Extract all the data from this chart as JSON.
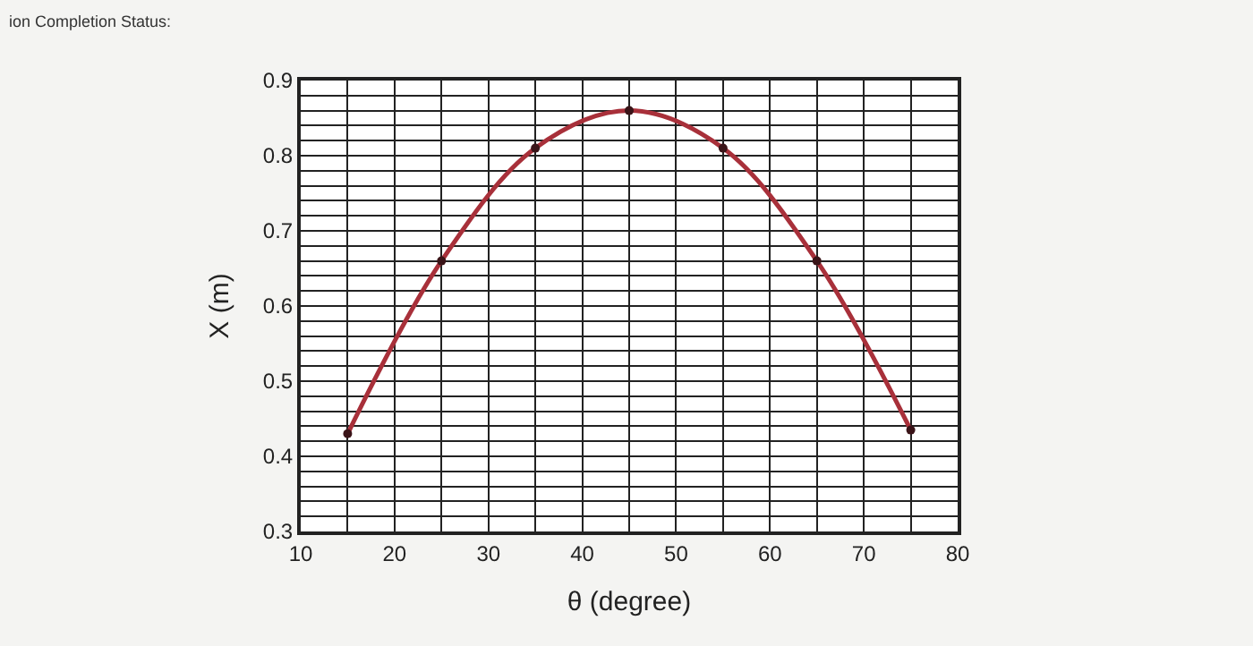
{
  "chart_data": {
    "type": "line",
    "xlabel": "θ (degree)",
    "ylabel": "X (m)",
    "annotations": [
      "ion Completion Status:"
    ],
    "x": [
      15,
      25,
      35,
      45,
      55,
      65,
      75
    ],
    "series": [
      {
        "color": "#a8303a",
        "values": [
          0.43,
          0.66,
          0.81,
          0.86,
          0.81,
          0.66,
          0.435
        ]
      }
    ],
    "xlim": [
      10,
      80
    ],
    "xticks": [
      10,
      {
        "value": 15,
        "label": null
      },
      20,
      {
        "value": 25,
        "label": null
      },
      30,
      {
        "value": 35,
        "label": null
      },
      40,
      {
        "value": 45,
        "label": null
      },
      50,
      {
        "value": 55,
        "label": null
      },
      60,
      {
        "value": 65,
        "label": null
      },
      70,
      {
        "value": 75,
        "label": null
      },
      80
    ],
    "ylim": [
      0.3,
      0.9
    ],
    "yticks": [
      0.3,
      {
        "value": 0.32,
        "label": null
      },
      {
        "value": 0.34,
        "label": null
      },
      {
        "value": 0.36,
        "label": null
      },
      {
        "value": 0.38,
        "label": null
      },
      0.4,
      {
        "value": 0.42,
        "label": null
      },
      {
        "value": 0.44,
        "label": null
      },
      {
        "value": 0.46,
        "label": null
      },
      {
        "value": 0.48,
        "label": null
      },
      0.5,
      {
        "value": 0.52,
        "label": null
      },
      {
        "value": 0.54,
        "label": null
      },
      {
        "value": 0.56,
        "label": null
      },
      {
        "value": 0.58,
        "label": null
      },
      0.6,
      {
        "value": 0.62,
        "label": null
      },
      {
        "value": 0.64,
        "label": null
      },
      {
        "value": 0.66,
        "label": null
      },
      {
        "value": 0.68,
        "label": null
      },
      0.7,
      {
        "value": 0.72,
        "label": null
      },
      {
        "value": 0.74,
        "label": null
      },
      {
        "value": 0.76,
        "label": null
      },
      {
        "value": 0.78,
        "label": null
      },
      0.8,
      {
        "value": 0.82,
        "label": null
      },
      {
        "value": 0.84,
        "label": null
      },
      {
        "value": 0.86,
        "label": null
      },
      {
        "value": 0.88,
        "label": null
      },
      0.9
    ],
    "grid": true,
    "marker": "circle",
    "line_style": "solid",
    "legend": false
  }
}
